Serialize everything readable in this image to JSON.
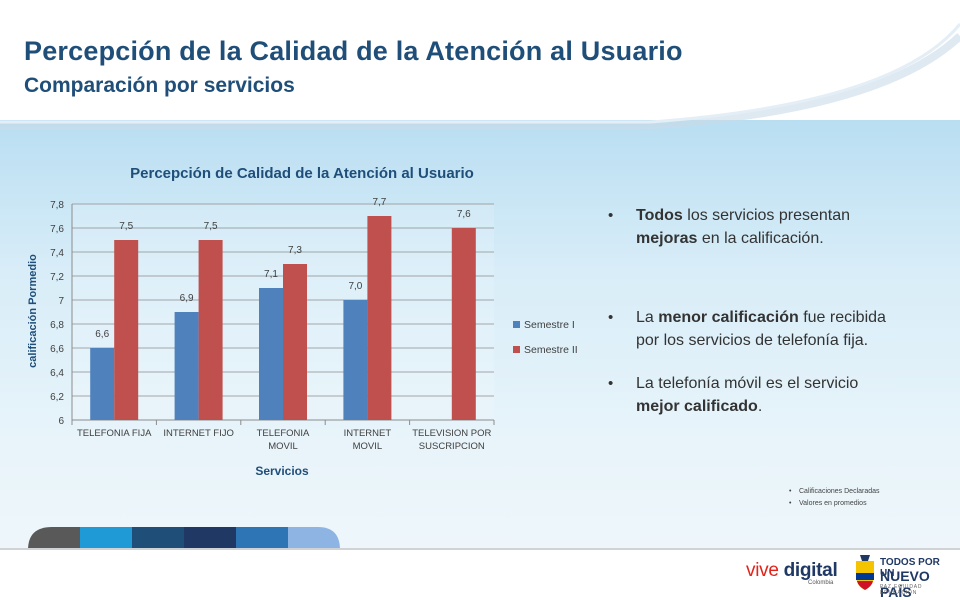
{
  "slide": {
    "title": "Percepción de la Calidad de la Atención al Usuario",
    "subtitle": "Comparación por servicios"
  },
  "colors": {
    "title": "#1f4e79",
    "series_1": "#4f81bd",
    "series_2": "#c0504d",
    "background_band": "#d8edf8"
  },
  "chart_data": {
    "type": "bar",
    "title": "Percepción de Calidad  de la Atención al Usuario",
    "xlabel": "Servicios",
    "ylabel": "calificación  Pormedio",
    "ylim": [
      6,
      7.8
    ],
    "yticks": [
      "6",
      "6,2",
      "6,4",
      "6,6",
      "6,8",
      "7",
      "7,2",
      "7,4",
      "7,6",
      "7,8"
    ],
    "ytick_values": [
      6,
      6.2,
      6.4,
      6.6,
      6.8,
      7,
      7.2,
      7.4,
      7.6,
      7.8
    ],
    "grid": true,
    "legend_position": "right",
    "categories": [
      [
        "TELEFONIA FIJA"
      ],
      [
        "INTERNET FIJO"
      ],
      [
        "TELEFONIA",
        "MOVIL"
      ],
      [
        "INTERNET",
        "MOVIL"
      ],
      [
        "TELEVISION POR",
        "SUSCRIPCION"
      ]
    ],
    "series": [
      {
        "name": "Semestre I",
        "values": [
          6.6,
          6.9,
          7.1,
          7.0,
          null
        ],
        "labels": [
          "6,6",
          "6,9",
          "7,1",
          "7,0",
          ""
        ]
      },
      {
        "name": "Semestre II",
        "values": [
          7.5,
          7.5,
          7.3,
          7.7,
          7.6
        ],
        "labels": [
          "7,5",
          "7,5",
          "7,3",
          "7,7",
          "7,6"
        ]
      }
    ]
  },
  "bullets": [
    {
      "bold_1": "Todos",
      "text_1": " los servicios presentan ",
      "bold_2": "mejoras",
      "text_2": " en la calificación."
    },
    {
      "text_0": "La ",
      "bold_1": "menor calificación",
      "text_1": " fue recibida por los servicios de telefonía fija."
    },
    {
      "text_0": "La telefonía móvil es el servicio ",
      "bold_1": "mejor calificado",
      "text_1": "."
    }
  ],
  "notes": [
    "Calificaciones Declaradas",
    "Valores en promedios"
  ],
  "footer": {
    "tab_colors": [
      "#595959",
      "#1f9ad6",
      "#1f4e79",
      "#203864",
      "#2e75b6",
      "#8eb4e3"
    ],
    "logo_vive": "vive",
    "logo_digital": "digital",
    "logo_colombia": "Colombia",
    "tpn_line1": "TODOS POR UN",
    "tpn_line2": "NUEVO PAÍS",
    "tpn_line3": "PAZ  EQUIDAD  EDUCACIÓN"
  }
}
